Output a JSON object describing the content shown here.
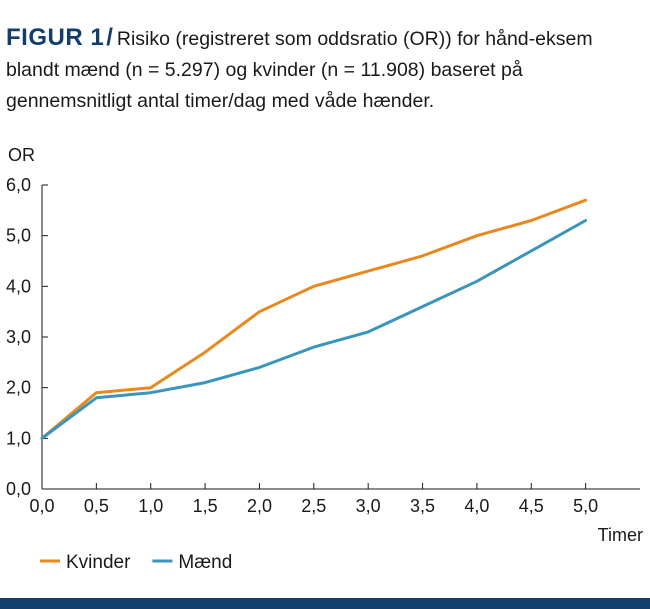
{
  "figure": {
    "label": "FIGUR 1",
    "separator": "/",
    "caption": "Risiko (registreret som oddsratio (OR)) for hånd-eksem blandt mænd (n = 5.297) og kvinder (n = 11.908) baseret på gennemsnitligt antal timer/dag med våde hænder."
  },
  "chart_data": {
    "type": "line",
    "title": "",
    "xlabel": "Timer",
    "ylabel": "OR",
    "x": [
      0.0,
      0.5,
      1.0,
      1.5,
      2.0,
      2.5,
      3.0,
      3.5,
      4.0,
      4.5,
      5.0
    ],
    "xlim": [
      0,
      5.5
    ],
    "ylim": [
      0,
      6
    ],
    "x_tick_labels": [
      "0,0",
      "0,5",
      "1,0",
      "1,5",
      "2,0",
      "2,5",
      "3,0",
      "3,5",
      "4,0",
      "4,5",
      "5,0"
    ],
    "y_ticks": [
      0,
      1,
      2,
      3,
      4,
      5,
      6
    ],
    "y_tick_labels": [
      "0,0",
      "1,0",
      "2,0",
      "3,0",
      "4,0",
      "5,0",
      "6,0"
    ],
    "grid": false,
    "legend_position": "bottom-left",
    "series": [
      {
        "name": "Kvinder",
        "color": "#e8891f",
        "values": [
          1.0,
          1.9,
          2.0,
          2.7,
          3.5,
          4.0,
          4.3,
          4.6,
          5.0,
          5.3,
          5.7
        ]
      },
      {
        "name": "Mænd",
        "color": "#3a95bc",
        "values": [
          1.0,
          1.8,
          1.9,
          2.1,
          2.4,
          2.8,
          3.1,
          3.6,
          4.1,
          4.7,
          5.3
        ]
      }
    ]
  }
}
